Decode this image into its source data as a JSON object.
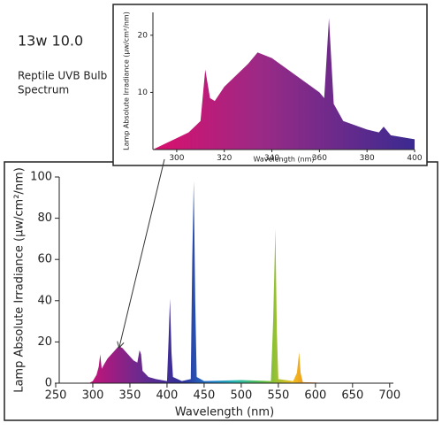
{
  "title": "13w 10.0",
  "subtitle": [
    "Reptile UVB Bulb",
    "Spectrum"
  ],
  "chart_data": [
    {
      "type": "area",
      "x_label": "Wavelength (nm)",
      "y_label": "Lamp Absolute Irradiance (μw/cm²/nm)",
      "x": [
        295,
        300,
        305,
        308,
        310,
        312,
        315,
        320,
        330,
        335,
        340,
        350,
        355,
        360,
        363,
        365,
        367,
        375,
        385,
        400,
        402,
        404,
        406,
        408,
        420,
        432,
        434,
        436,
        438,
        440,
        450,
        500,
        540,
        543,
        546,
        548,
        550,
        570,
        575,
        578,
        580,
        583,
        600,
        610
      ],
      "values": [
        0,
        1,
        4,
        8,
        14,
        7,
        9,
        12,
        16,
        18,
        17,
        13,
        11,
        10,
        16,
        14,
        6,
        3,
        2,
        1,
        20,
        41,
        15,
        3,
        1,
        2,
        60,
        98,
        40,
        3,
        1,
        1.5,
        1,
        30,
        75,
        25,
        2,
        1,
        5,
        15,
        5,
        0.5,
        0.3,
        0
      ],
      "xlim": [
        250,
        705
      ],
      "ylim": [
        0,
        100
      ],
      "xticks": [
        250,
        300,
        350,
        400,
        450,
        500,
        550,
        600,
        650,
        700
      ],
      "yticks": [
        0,
        20,
        40,
        60,
        80,
        100
      ]
    },
    {
      "type": "area",
      "x_label": "Wavelength (nm)",
      "y_label": "Lamp Absolute Irradiance (μw/cm²/nm)",
      "x": [
        290,
        295,
        300,
        305,
        310,
        312,
        314,
        316,
        320,
        330,
        334,
        340,
        350,
        360,
        362,
        364,
        366,
        370,
        380,
        385,
        387,
        390,
        400
      ],
      "values": [
        0,
        1,
        2,
        3,
        5,
        14,
        9,
        8.5,
        11,
        15,
        17,
        16,
        13,
        10,
        9,
        23,
        8,
        5,
        3.5,
        3,
        4,
        2.5,
        1.8
      ],
      "xlim": [
        290,
        400
      ],
      "ylim": [
        0,
        24
      ],
      "xticks": [
        300,
        320,
        340,
        360,
        380,
        400
      ],
      "yticks": [
        10,
        20
      ]
    }
  ]
}
